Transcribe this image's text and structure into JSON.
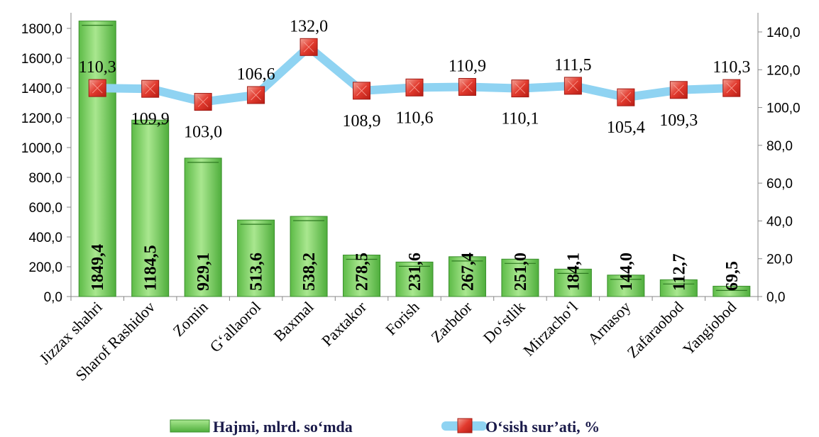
{
  "chart_data": {
    "type": "bar",
    "categories": [
      "Jizzax shahri",
      "Sharof Rashidov",
      "Zomin",
      "G‘allaorol",
      "Baxmal",
      "Paxtakor",
      "Forish",
      "Zarbdor",
      "Do‘stlik",
      "Mirzacho‘l",
      "Arnasoy",
      "Zafaraobod",
      "Yangiobod"
    ],
    "series": [
      {
        "name": "Hajmi, mlrd. so‘mda",
        "chart": "bar",
        "axis": "left",
        "values": [
          1849.4,
          1184.5,
          929.1,
          513.6,
          538.2,
          278.5,
          231.6,
          267.4,
          251.0,
          184.1,
          144.0,
          112.7,
          69.5
        ],
        "labels": [
          "1849,4",
          "1184,5",
          "929,1",
          "513,6",
          "538,2",
          "278,5",
          "231,6",
          "267,4",
          "251,0",
          "184,1",
          "144,0",
          "112,7",
          "69,5"
        ],
        "color": "#7ed36a"
      },
      {
        "name": "O‘sish sur’ati, %",
        "chart": "line",
        "axis": "right",
        "values": [
          110.3,
          109.9,
          103.0,
          106.6,
          132.0,
          108.9,
          110.6,
          110.9,
          110.1,
          111.5,
          105.4,
          109.3,
          110.3
        ],
        "labels": [
          "110,3",
          "109,9",
          "103,0",
          "106,6",
          "132,0",
          "108,9",
          "110,6",
          "110,9",
          "110,1",
          "111,5",
          "105,4",
          "109,3",
          "110,3"
        ],
        "label_side": [
          "above",
          "below",
          "below",
          "above",
          "above",
          "below",
          "below",
          "above",
          "below",
          "above",
          "below",
          "below",
          "above"
        ],
        "color": "#8fd3f2",
        "marker_color": "#e23a2e"
      }
    ],
    "y_left": {
      "ylim": [
        0,
        1800
      ],
      "ticks": [
        0,
        200,
        400,
        600,
        800,
        1000,
        1200,
        1400,
        1600,
        1800
      ],
      "tick_labels": [
        "0,0",
        "200,0",
        "400,0",
        "600,0",
        "800,0",
        "1000,0",
        "1200,0",
        "1400,0",
        "1600,0",
        "1800,0"
      ]
    },
    "y_right": {
      "ylim": [
        0,
        140
      ],
      "ticks": [
        0,
        20,
        40,
        60,
        80,
        100,
        120,
        140
      ],
      "tick_labels": [
        "0,0",
        "20,0",
        "40,0",
        "60,0",
        "80,0",
        "100,0",
        "120,0",
        "140,0"
      ]
    },
    "grid": false,
    "legend_position": "bottom"
  },
  "legend": {
    "bar_label": "Hajmi, mlrd. so‘mda",
    "line_label": "O‘sish sur’ati, %"
  }
}
